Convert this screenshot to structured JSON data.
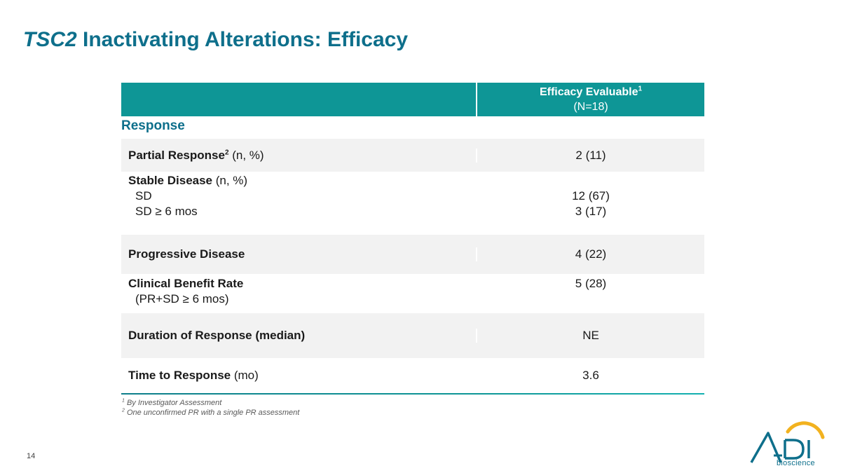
{
  "slide": {
    "title_gene": "TSC2",
    "title_rest": " Inactivating Alterations: Efficacy",
    "page_number": "14"
  },
  "table": {
    "header": {
      "label": "Efficacy Evaluable",
      "label_sup": "1",
      "n": "(N=18)"
    },
    "section": "Response",
    "rows": [
      {
        "label": "Partial Response",
        "label_sup": "2",
        "label_suffix": " (n, %)",
        "value": "2 (11)"
      },
      {
        "label": "Stable Disease",
        "label_suffix": " (n, %)",
        "sub1": "SD",
        "sub2": "SD ≥ 6 mos",
        "value1": "12 (67)",
        "value2": "3 (17)"
      },
      {
        "label": "Progressive Disease",
        "value": "4 (22)"
      },
      {
        "label": "Clinical Benefit Rate",
        "sub1": "(PR+SD ≥ 6 mos)",
        "value": "5 (28)"
      },
      {
        "label": "Duration of Response (median)",
        "value": "NE"
      },
      {
        "label": "Time to Response",
        "label_suffix": " (mo)",
        "value": "3.6"
      }
    ]
  },
  "footnotes": [
    {
      "sup": "1",
      "text": " By Investigator Assessment"
    },
    {
      "sup": "2",
      "text": " One unconfirmed PR with a single PR assessment"
    }
  ],
  "logo": {
    "text": "bioscience",
    "colors": {
      "teal": "#0e6f8b",
      "gold": "#f2b21f"
    }
  },
  "colors": {
    "title": "#0e6f8b",
    "header_bg": "#0e9696",
    "row_shade": "#f2f2f2"
  }
}
